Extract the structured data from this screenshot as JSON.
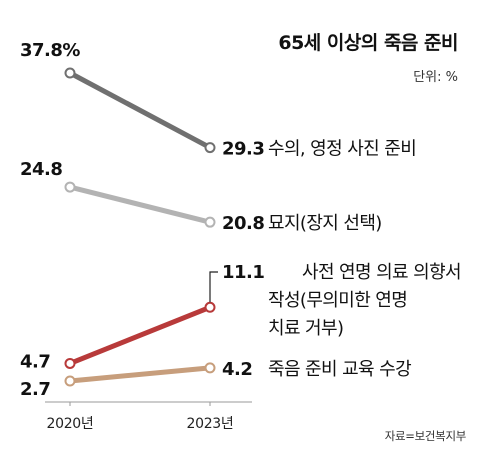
{
  "chart_data": {
    "type": "line",
    "title": "65세 이상의 죽음 준비",
    "unit_label": "단위: %",
    "x": [
      "2020년",
      "2023년"
    ],
    "series": [
      {
        "name": "수의, 영정 사진 준비",
        "name_lines": [
          "수의, 영정 사진 준비"
        ],
        "values": [
          37.8,
          29.3
        ],
        "value_labels": [
          "37.8%",
          "29.3"
        ],
        "color": "#707070"
      },
      {
        "name": "묘지(장지 선택)",
        "name_lines": [
          "묘지(장지 선택)"
        ],
        "values": [
          24.8,
          20.8
        ],
        "value_labels": [
          "24.8",
          "20.8"
        ],
        "color": "#b3b3b3"
      },
      {
        "name": "사전 연명 의료 의향서 작성(무의미한 연명 치료 거부)",
        "name_lines": [
          "사전 연명 의료 의향서",
          "작성(무의미한 연명",
          "치료 거부)"
        ],
        "values": [
          4.7,
          11.1
        ],
        "value_labels": [
          "4.7",
          "11.1"
        ],
        "color": "#b83a3a"
      },
      {
        "name": "죽음 준비 교육 수강",
        "name_lines": [
          "죽음 준비 교육 수강"
        ],
        "values": [
          2.7,
          4.2
        ],
        "value_labels": [
          "2.7",
          "4.2"
        ],
        "color": "#c79e7c"
      }
    ],
    "source": "자료=보건복지부",
    "grid": false,
    "legend": "none"
  }
}
